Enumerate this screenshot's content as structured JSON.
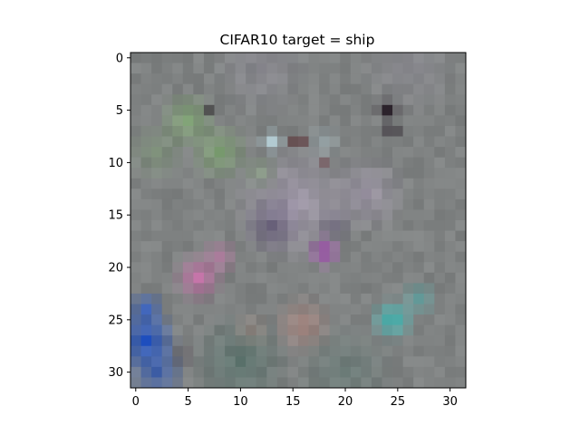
{
  "chart_data": {
    "type": "heatmap",
    "title": "CIFAR10 target = ship",
    "xlabel": "",
    "ylabel": "",
    "grid": false,
    "xlim": [
      -0.5,
      31.5
    ],
    "ylim": [
      31.5,
      -0.5
    ],
    "x_ticks": [
      0,
      5,
      10,
      15,
      20,
      25,
      30
    ],
    "y_ticks": [
      0,
      5,
      10,
      15,
      20,
      25,
      30
    ],
    "image_size": [
      32,
      32
    ],
    "colors": {
      "background": "#7f8282",
      "sky": "#8c8a93",
      "green_left": "#7fa871",
      "dark_post": "#2a1f2a",
      "light_blue_spot": "#bcd8e0",
      "red_spot": "#5a2228",
      "lavender_band": "#b7a7c4",
      "purple_dark": "#564a6e",
      "pink": "#c96aa8",
      "magenta": "#b04cc0",
      "teal": "#3fc4c0",
      "blue_corner": "#1f52c8",
      "salmon": "#c08a80",
      "dark_green_bottom": "#4a6e64"
    }
  }
}
